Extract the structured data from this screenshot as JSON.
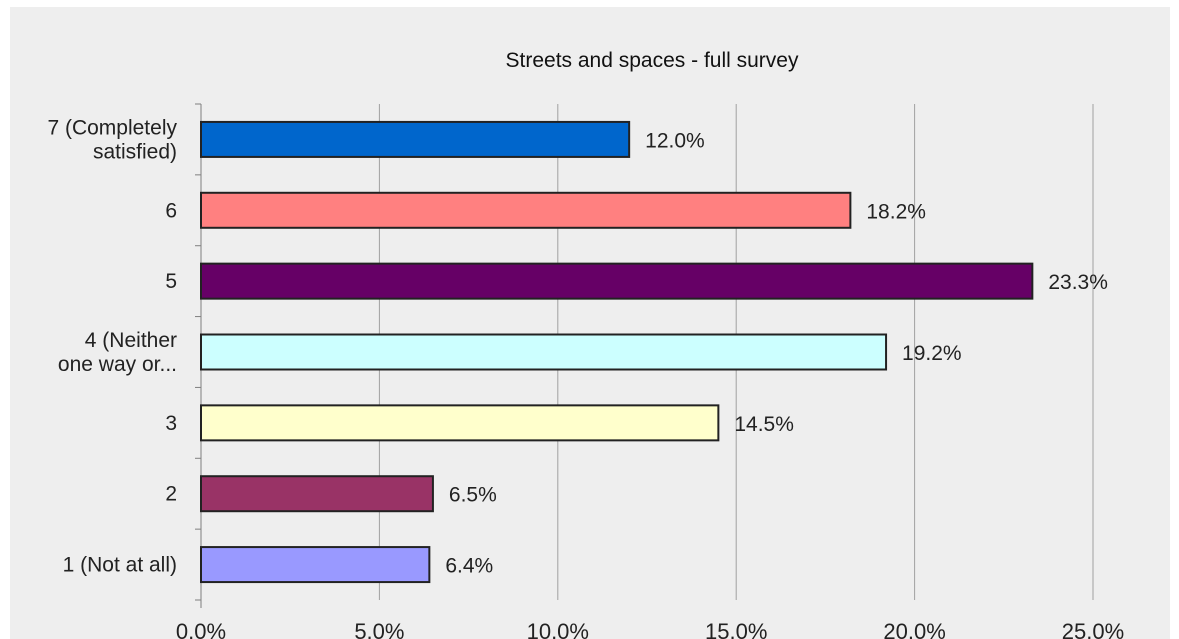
{
  "chart_data": {
    "type": "bar",
    "orientation": "horizontal",
    "title": "Streets and spaces - full survey",
    "categories": [
      [
        "7 (Completely",
        "satisfied)"
      ],
      [
        "6"
      ],
      [
        "5"
      ],
      [
        "4 (Neither",
        "one way or..."
      ],
      [
        "3"
      ],
      [
        "2"
      ],
      [
        "1 (Not at all)"
      ]
    ],
    "values": [
      12.0,
      18.2,
      23.3,
      19.2,
      14.5,
      6.5,
      6.4
    ],
    "value_labels": [
      "12.0%",
      "18.2%",
      "23.3%",
      "19.2%",
      "14.5%",
      "6.5%",
      "6.4%"
    ],
    "colors": [
      "#0066cc",
      "#ff8080",
      "#660066",
      "#ccffff",
      "#ffffcc",
      "#993366",
      "#9999ff"
    ],
    "xlim": [
      0,
      25
    ],
    "x_ticks": [
      0,
      5,
      10,
      15,
      20,
      25
    ],
    "x_tick_labels": [
      "0.0%",
      "5.0%",
      "10.0%",
      "15.0%",
      "20.0%",
      "25.0%"
    ],
    "grid": "vertical",
    "legend": "none"
  }
}
